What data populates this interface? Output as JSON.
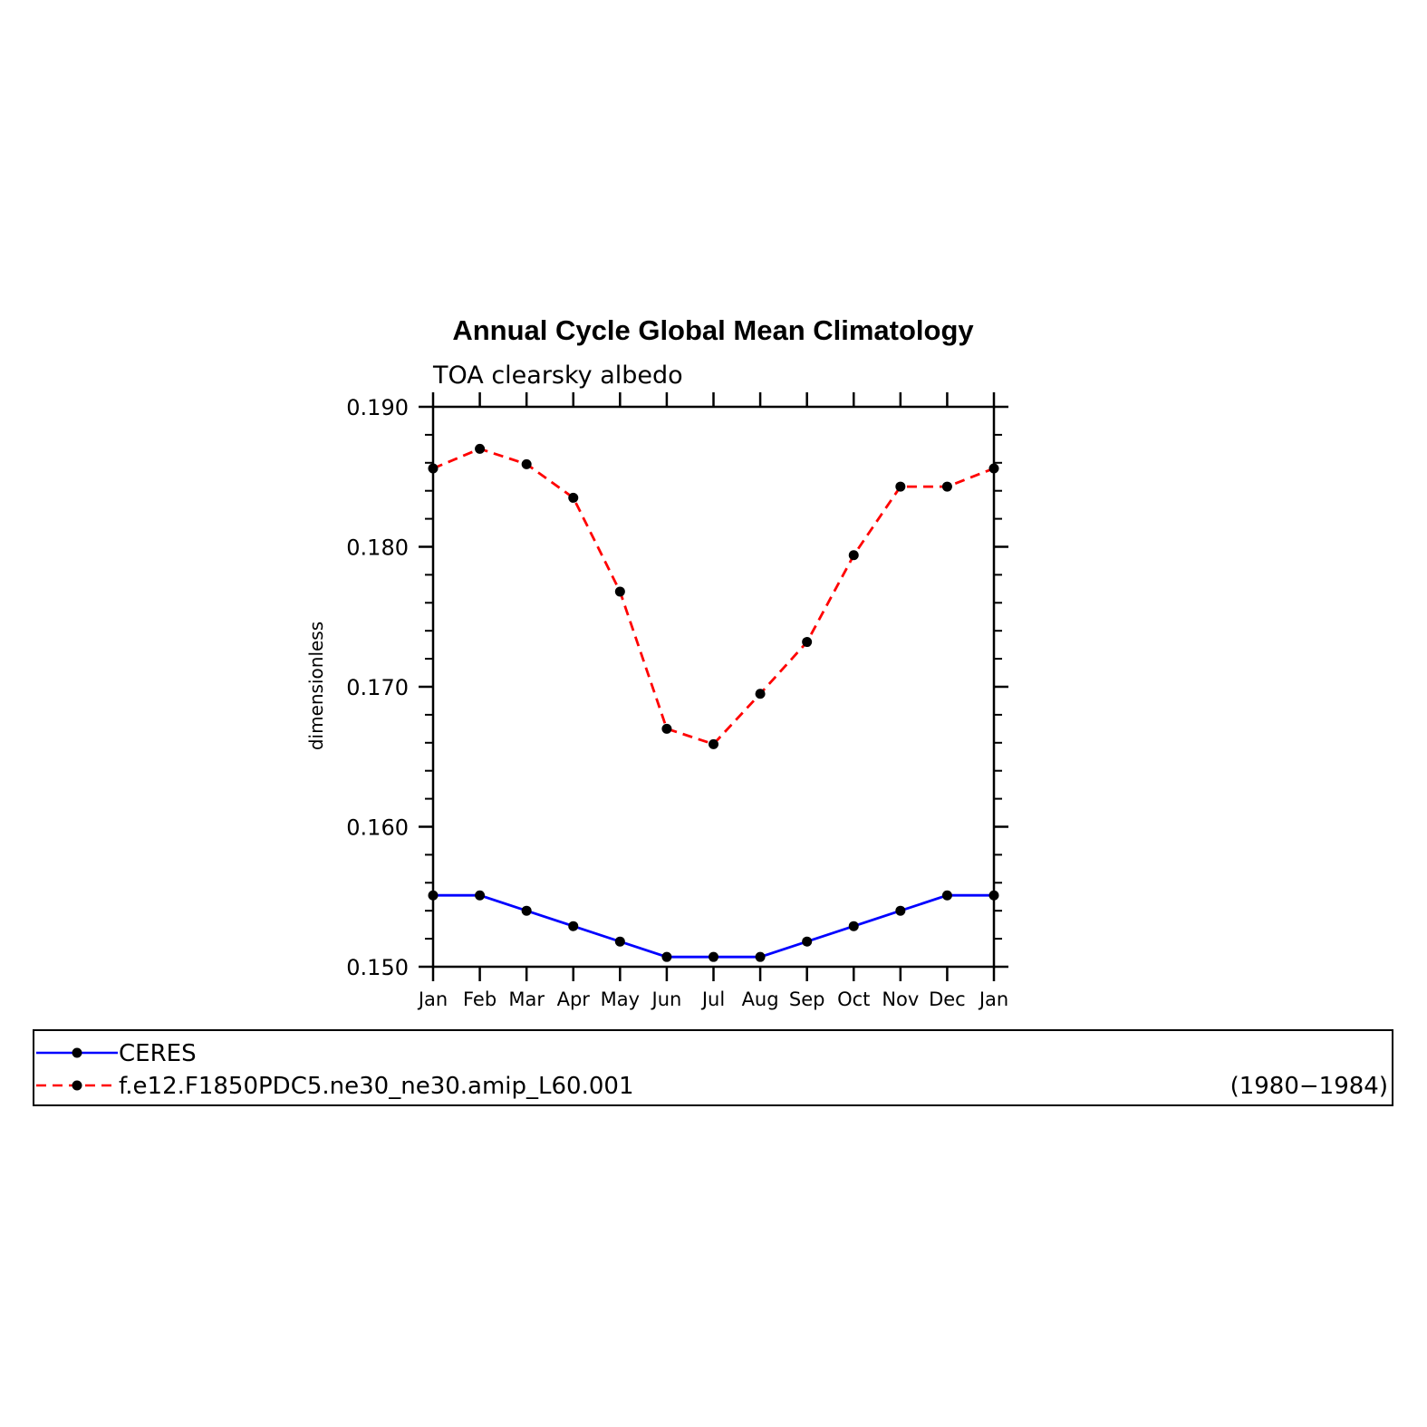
{
  "chart_data": {
    "type": "line",
    "title": "Annual Cycle Global Mean Climatology",
    "subtitle": "TOA clearsky albedo",
    "ylabel": "dimensionless",
    "xlabel": "",
    "categories": [
      "Jan",
      "Feb",
      "Mar",
      "Apr",
      "May",
      "Jun",
      "Jul",
      "Aug",
      "Sep",
      "Oct",
      "Nov",
      "Dec",
      "Jan"
    ],
    "ylim": [
      0.15,
      0.19
    ],
    "yticks": [
      "0.150",
      "0.160",
      "0.170",
      "0.180",
      "0.190"
    ],
    "series": [
      {
        "name": "CERES",
        "color": "#0000ff",
        "style": "solid",
        "values": [
          0.1551,
          0.1551,
          0.154,
          0.1529,
          0.1518,
          0.1507,
          0.1507,
          0.1507,
          0.1518,
          0.1529,
          0.154,
          0.1551,
          0.1551
        ]
      },
      {
        "name": "f.e12.F1850PDC5.ne30_ne30.amip_L60.001",
        "color": "#ff0000",
        "style": "dashed",
        "values": [
          0.1856,
          0.187,
          0.1859,
          0.1835,
          0.1768,
          0.167,
          0.1659,
          0.1695,
          0.1732,
          0.1794,
          0.1843,
          0.1843,
          0.1856
        ]
      }
    ],
    "marker_color": "#000000",
    "legend": {
      "placement": "bottom",
      "period": "(1980−1984)"
    },
    "grid": false
  }
}
